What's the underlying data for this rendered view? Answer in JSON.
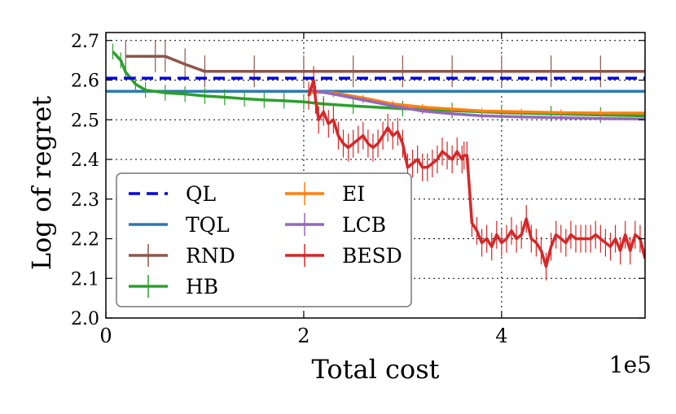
{
  "chart_data": {
    "type": "line",
    "title": "",
    "xlabel": "Total cost",
    "ylabel": "Log of regret",
    "x_scale_label": "1e5",
    "xlim": [
      0,
      5.45
    ],
    "ylim": [
      2.0,
      2.72
    ],
    "x_ticks": [
      0,
      2,
      4
    ],
    "x_tick_labels": [
      "0",
      "2",
      "4"
    ],
    "y_ticks": [
      2.0,
      2.1,
      2.2,
      2.3,
      2.4,
      2.5,
      2.6,
      2.7
    ],
    "y_tick_labels": [
      "2.0",
      "2.1",
      "2.2",
      "2.3",
      "2.4",
      "2.5",
      "2.6",
      "2.7"
    ],
    "grid": true,
    "legend_position": "lower-left",
    "legend_columns": 2,
    "series": [
      {
        "name": "QL",
        "color": "#0000dd",
        "style": "dashed",
        "x": [
          0,
          5.45
        ],
        "y": [
          2.605,
          2.605
        ]
      },
      {
        "name": "TQL",
        "color": "#2b7bb0",
        "style": "solid",
        "x": [
          0,
          5.45
        ],
        "y": [
          2.572,
          2.572
        ]
      },
      {
        "name": "RND",
        "color": "#8c564b",
        "style": "solid",
        "error_bars": true,
        "x": [
          0.2,
          0.5,
          0.6,
          0.8,
          1.0,
          1.5,
          2.0,
          2.5,
          3.0,
          3.5,
          4.0,
          4.5,
          5.0,
          5.45
        ],
        "y": [
          2.66,
          2.66,
          2.66,
          2.64,
          2.622,
          2.622,
          2.622,
          2.622,
          2.622,
          2.622,
          2.622,
          2.622,
          2.622,
          2.622
        ],
        "err": 0.04
      },
      {
        "name": "HB",
        "color": "#2ca02c",
        "style": "solid",
        "error_bars": true,
        "x": [
          0.07,
          0.15,
          0.2,
          0.3,
          0.4,
          0.6,
          0.8,
          1.0,
          1.2,
          1.4,
          1.6,
          1.8,
          2.0,
          2.2,
          2.5,
          3.0,
          3.5,
          4.0,
          4.5,
          5.0,
          5.45
        ],
        "y": [
          2.672,
          2.65,
          2.62,
          2.59,
          2.575,
          2.568,
          2.565,
          2.56,
          2.557,
          2.553,
          2.55,
          2.548,
          2.545,
          2.54,
          2.535,
          2.528,
          2.523,
          2.518,
          2.515,
          2.512,
          2.51
        ],
        "err": 0.02
      },
      {
        "name": "EI",
        "color": "#ff7f0e",
        "style": "solid",
        "error_bars": true,
        "x": [
          2.07,
          2.3,
          2.6,
          2.9,
          3.2,
          3.5,
          3.8,
          4.2,
          4.6,
          5.0,
          5.45
        ],
        "y": [
          2.57,
          2.568,
          2.555,
          2.54,
          2.532,
          2.527,
          2.522,
          2.52,
          2.518,
          2.517,
          2.517
        ],
        "err": 0.008
      },
      {
        "name": "LCB",
        "color": "#9467bd",
        "style": "solid",
        "error_bars": true,
        "x": [
          2.07,
          2.3,
          2.6,
          2.9,
          3.2,
          3.5,
          3.8,
          4.2,
          4.6,
          5.0,
          5.45
        ],
        "y": [
          2.575,
          2.565,
          2.55,
          2.535,
          2.522,
          2.515,
          2.51,
          2.507,
          2.505,
          2.503,
          2.502
        ],
        "err": 0.008
      },
      {
        "name": "BESD",
        "color": "#d62728",
        "style": "solid",
        "error_bars": true,
        "x": [
          2.05,
          2.1,
          2.12,
          2.15,
          2.2,
          2.25,
          2.3,
          2.35,
          2.4,
          2.45,
          2.5,
          2.55,
          2.6,
          2.65,
          2.7,
          2.75,
          2.8,
          2.85,
          2.9,
          2.95,
          3.0,
          3.05,
          3.1,
          3.15,
          3.2,
          3.25,
          3.3,
          3.35,
          3.4,
          3.45,
          3.5,
          3.55,
          3.6,
          3.62,
          3.65,
          3.7,
          3.75,
          3.8,
          3.85,
          3.9,
          3.95,
          4.0,
          4.05,
          4.1,
          4.15,
          4.2,
          4.25,
          4.3,
          4.35,
          4.4,
          4.45,
          4.5,
          4.55,
          4.6,
          4.65,
          4.7,
          4.75,
          4.8,
          4.85,
          4.9,
          4.95,
          5.0,
          5.05,
          5.1,
          5.15,
          5.2,
          5.25,
          5.3,
          5.35,
          5.4,
          5.45
        ],
        "y": [
          2.56,
          2.6,
          2.55,
          2.5,
          2.52,
          2.49,
          2.5,
          2.46,
          2.44,
          2.43,
          2.44,
          2.45,
          2.46,
          2.44,
          2.43,
          2.44,
          2.46,
          2.48,
          2.46,
          2.47,
          2.44,
          2.38,
          2.39,
          2.4,
          2.38,
          2.38,
          2.39,
          2.4,
          2.42,
          2.41,
          2.4,
          2.42,
          2.4,
          2.41,
          2.41,
          2.24,
          2.22,
          2.19,
          2.2,
          2.18,
          2.21,
          2.19,
          2.2,
          2.22,
          2.2,
          2.21,
          2.25,
          2.2,
          2.19,
          2.17,
          2.13,
          2.18,
          2.21,
          2.2,
          2.19,
          2.21,
          2.2,
          2.2,
          2.2,
          2.2,
          2.21,
          2.2,
          2.19,
          2.18,
          2.2,
          2.17,
          2.21,
          2.17,
          2.21,
          2.2,
          2.15
        ],
        "err": 0.035
      }
    ]
  }
}
